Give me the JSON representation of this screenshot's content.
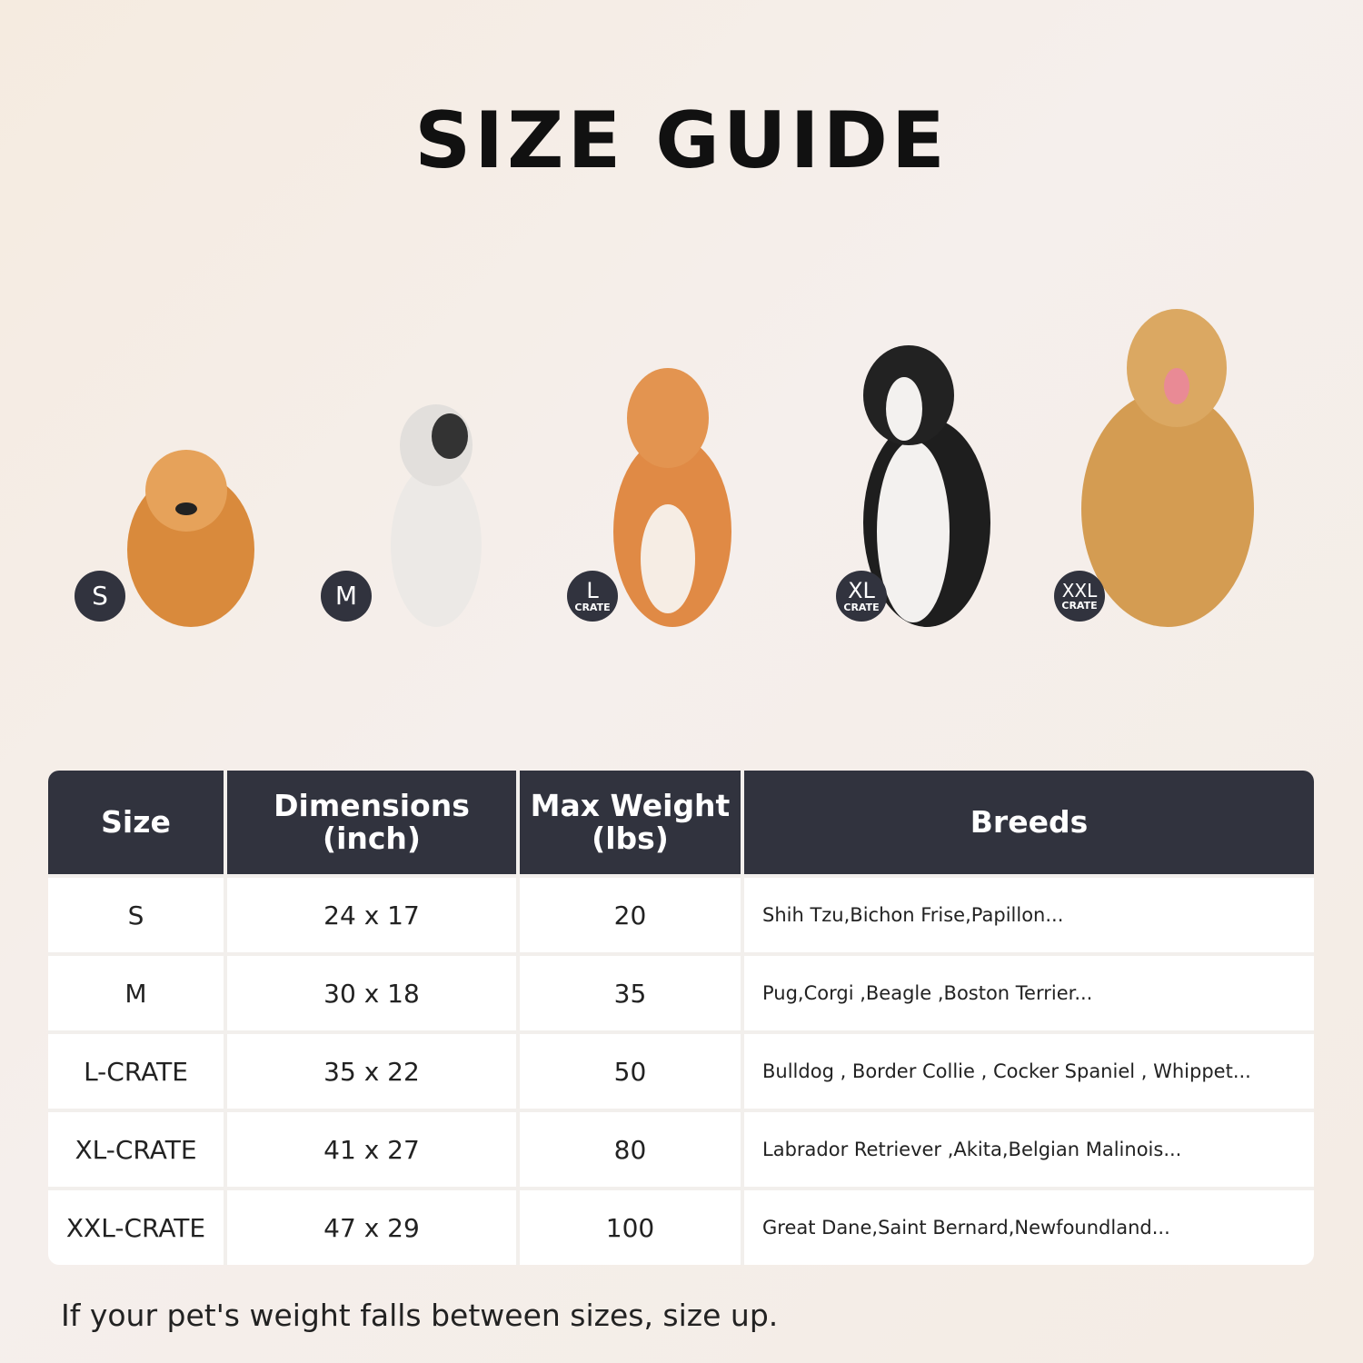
{
  "title": "SIZE GUIDE",
  "dogs": [
    {
      "badge": "S",
      "sub": ""
    },
    {
      "badge": "M",
      "sub": ""
    },
    {
      "badge": "L",
      "sub": "CRATE"
    },
    {
      "badge": "XL",
      "sub": "CRATE"
    },
    {
      "badge": "XXL",
      "sub": "CRATE"
    }
  ],
  "table": {
    "headers": [
      "Size",
      "Dimensions (inch)",
      "Max Weight (lbs)",
      "Breeds"
    ],
    "rows": [
      [
        "S",
        "24 x 17",
        "20",
        "Shih Tzu,Bichon Frise,Papillon..."
      ],
      [
        "M",
        "30 x 18",
        "35",
        "Pug,Corgi ,Beagle ,Boston Terrier..."
      ],
      [
        "L-CRATE",
        "35 x 22",
        "50",
        "Bulldog , Border Collie , Cocker Spaniel , Whippet..."
      ],
      [
        "XL-CRATE",
        "41 x 27",
        "80",
        "Labrador Retriever ,Akita,Belgian Malinois..."
      ],
      [
        "XXL-CRATE",
        "47 x 29",
        "100",
        "Great Dane,Saint Bernard,Newfoundland..."
      ]
    ]
  },
  "note": "If your pet's weight falls between sizes, size up.",
  "colors": {
    "header_bg": "#31333e",
    "badge_bg": "#31333e"
  }
}
